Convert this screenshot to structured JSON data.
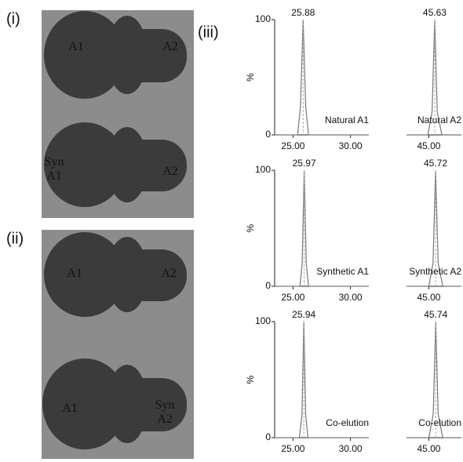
{
  "panels": [
    "(i)",
    "(ii)",
    "(iii)"
  ],
  "photos": [
    {
      "labels": [
        "A1",
        "A2",
        "Syn A1",
        "A2"
      ]
    },
    {
      "labels": [
        "A1",
        "A2",
        "A1",
        "Syn A2"
      ]
    }
  ],
  "chart_data": [
    {
      "type": "line",
      "ylabel": "%",
      "x": [
        23.4,
        25.4,
        25.65,
        25.88,
        26.1,
        26.35,
        31.6
      ],
      "values": [
        0,
        0,
        25,
        100,
        25,
        0,
        0
      ],
      "color": "#777777",
      "xlim": [
        23.4,
        31.6
      ],
      "ylim": [
        0,
        100
      ],
      "xticks": [
        {
          "value": 25,
          "label": "25.00"
        },
        {
          "value": 30,
          "label": "30.00"
        }
      ],
      "yticks": [
        0,
        100
      ],
      "annotations": [
        "25.88",
        "Natural A1"
      ]
    },
    {
      "type": "line",
      "x": [
        42.6,
        44.9,
        45.35,
        45.63,
        45.9,
        46.4,
        48.5
      ],
      "values": [
        0,
        0,
        20,
        100,
        20,
        0,
        0
      ],
      "color": "#777777",
      "xlim": [
        42.6,
        48.5
      ],
      "ylim": [
        0,
        100
      ],
      "xticks": [
        {
          "value": 45,
          "label": "45.00"
        }
      ],
      "annotations": [
        "45.63",
        "Natural A2"
      ]
    },
    {
      "type": "line",
      "ylabel": "%",
      "x": [
        23.4,
        25.6,
        25.8,
        25.97,
        26.15,
        26.35,
        31.6
      ],
      "values": [
        0,
        0,
        20,
        100,
        20,
        0,
        0
      ],
      "color": "#777777",
      "xlim": [
        23.4,
        31.6
      ],
      "ylim": [
        0,
        100
      ],
      "xticks": [
        {
          "value": 25,
          "label": "25.00"
        },
        {
          "value": 30,
          "label": "30.00"
        }
      ],
      "yticks": [
        0,
        100
      ],
      "annotations": [
        "25.97",
        "Synthetic A1"
      ]
    },
    {
      "type": "line",
      "x": [
        42.6,
        45.0,
        45.45,
        45.72,
        46.0,
        46.5,
        48.5
      ],
      "values": [
        0,
        0,
        20,
        100,
        20,
        0,
        0
      ],
      "color": "#777777",
      "xlim": [
        42.6,
        48.5
      ],
      "ylim": [
        0,
        100
      ],
      "xticks": [
        {
          "value": 45,
          "label": "45.00"
        }
      ],
      "annotations": [
        "45.72",
        "Synthetic A2"
      ]
    },
    {
      "type": "line",
      "ylabel": "%",
      "x": [
        23.4,
        25.55,
        25.78,
        25.94,
        26.1,
        26.3,
        31.6
      ],
      "values": [
        0,
        0,
        20,
        100,
        20,
        0,
        0
      ],
      "color": "#777777",
      "xlim": [
        23.4,
        31.6
      ],
      "ylim": [
        0,
        100
      ],
      "xticks": [
        {
          "value": 25,
          "label": "25.00"
        },
        {
          "value": 30,
          "label": "30.00"
        }
      ],
      "yticks": [
        0,
        100
      ],
      "annotations": [
        "25.94",
        "Co-elution"
      ]
    },
    {
      "type": "line",
      "x": [
        42.6,
        45.0,
        45.47,
        45.74,
        46.0,
        46.5,
        48.5
      ],
      "values": [
        0,
        0,
        20,
        100,
        20,
        0,
        0
      ],
      "color": "#777777",
      "xlim": [
        42.6,
        48.5
      ],
      "ylim": [
        0,
        100
      ],
      "xticks": [
        {
          "value": 45,
          "label": "45.00"
        }
      ],
      "annotations": [
        "45.74",
        "Co-elution"
      ]
    }
  ]
}
